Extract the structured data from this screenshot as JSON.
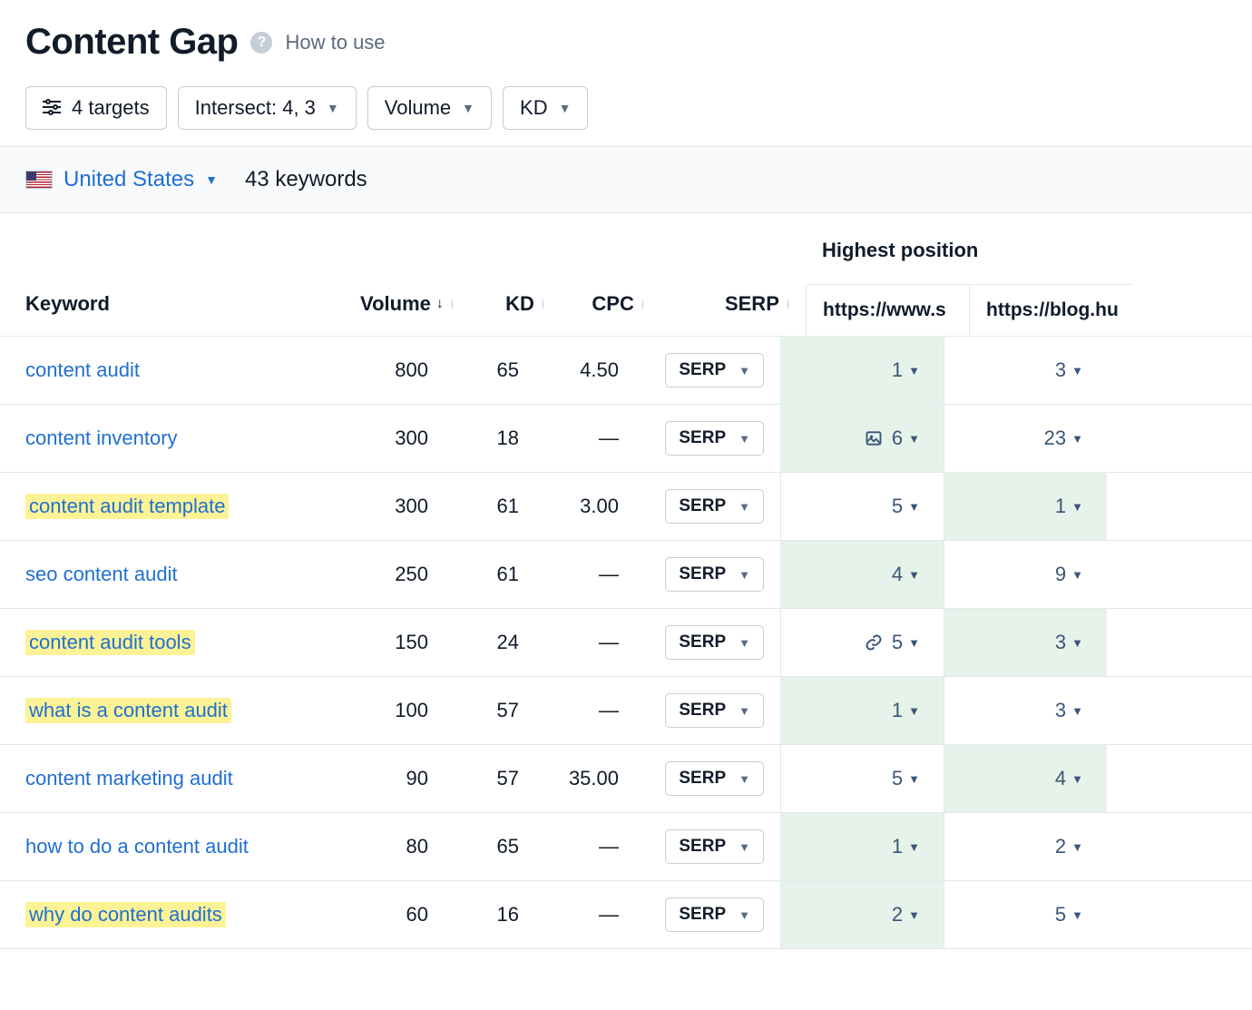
{
  "header": {
    "title": "Content Gap",
    "how_to": "How to use"
  },
  "filters": {
    "targets": "4 targets",
    "intersect": "Intersect: 4, 3",
    "volume": "Volume",
    "kd": "KD"
  },
  "subbar": {
    "country": "United States",
    "kw_count": "43 keywords"
  },
  "columns": {
    "keyword": "Keyword",
    "volume": "Volume",
    "kd": "KD",
    "cpc": "CPC",
    "serp": "SERP",
    "highest_position": "Highest position",
    "url1": "https://www.s",
    "url2": "https://blog.hu"
  },
  "serp_btn_label": "SERP",
  "rows": [
    {
      "keyword": "content audit",
      "hl": false,
      "volume": "800",
      "kd": "65",
      "cpc": "4.50",
      "pos1": "1",
      "pos1_icon": null,
      "pos1_best": true,
      "pos2": "3",
      "pos2_best": false
    },
    {
      "keyword": "content inventory",
      "hl": false,
      "volume": "300",
      "kd": "18",
      "cpc": "—",
      "pos1": "6",
      "pos1_icon": "image",
      "pos1_best": true,
      "pos2": "23",
      "pos2_best": false
    },
    {
      "keyword": "content audit template",
      "hl": true,
      "volume": "300",
      "kd": "61",
      "cpc": "3.00",
      "pos1": "5",
      "pos1_icon": null,
      "pos1_best": false,
      "pos2": "1",
      "pos2_best": true
    },
    {
      "keyword": "seo content audit",
      "hl": false,
      "volume": "250",
      "kd": "61",
      "cpc": "—",
      "pos1": "4",
      "pos1_icon": null,
      "pos1_best": true,
      "pos2": "9",
      "pos2_best": false
    },
    {
      "keyword": "content audit tools",
      "hl": true,
      "volume": "150",
      "kd": "24",
      "cpc": "—",
      "pos1": "5",
      "pos1_icon": "link",
      "pos1_best": false,
      "pos2": "3",
      "pos2_best": true
    },
    {
      "keyword": "what is a content audit",
      "hl": true,
      "volume": "100",
      "kd": "57",
      "cpc": "—",
      "pos1": "1",
      "pos1_icon": null,
      "pos1_best": true,
      "pos2": "3",
      "pos2_best": false
    },
    {
      "keyword": "content marketing audit",
      "hl": false,
      "volume": "90",
      "kd": "57",
      "cpc": "35.00",
      "pos1": "5",
      "pos1_icon": null,
      "pos1_best": false,
      "pos2": "4",
      "pos2_best": true
    },
    {
      "keyword": "how to do a content audit",
      "hl": false,
      "volume": "80",
      "kd": "65",
      "cpc": "—",
      "pos1": "1",
      "pos1_icon": null,
      "pos1_best": true,
      "pos2": "2",
      "pos2_best": false
    },
    {
      "keyword": "why do content audits",
      "hl": true,
      "volume": "60",
      "kd": "16",
      "cpc": "—",
      "pos1": "2",
      "pos1_icon": null,
      "pos1_best": true,
      "pos2": "5",
      "pos2_best": false
    }
  ],
  "style": {
    "link_color": "#1f6fd1",
    "text_color": "#111b29",
    "muted_color": "#5a6b7e",
    "border_color": "#e3e8ee",
    "highlight_bg": "#fcf396",
    "best_bg": "#e6f3ea",
    "pos_color": "#3a5578"
  }
}
